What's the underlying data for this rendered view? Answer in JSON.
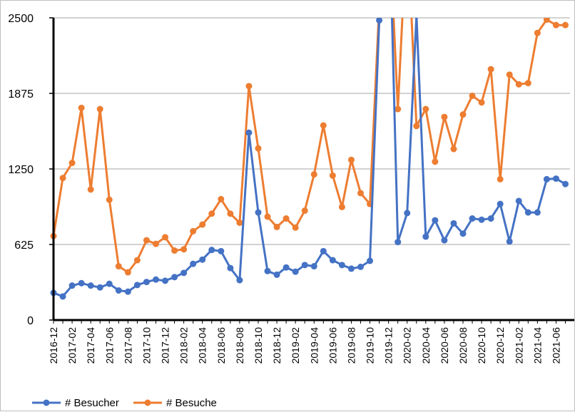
{
  "chart_data": {
    "type": "line",
    "title": "",
    "xlabel": "",
    "ylabel": "",
    "ylim": [
      0,
      2500
    ],
    "yticks": [
      0,
      625,
      1250,
      1875,
      2500
    ],
    "grid": true,
    "legend_position": "bottom-left",
    "x": [
      "2016-12",
      "2017-01",
      "2017-02",
      "2017-03",
      "2017-04",
      "2017-05",
      "2017-06",
      "2017-07",
      "2017-08",
      "2017-09",
      "2017-10",
      "2017-11",
      "2017-12",
      "2018-01",
      "2018-02",
      "2018-03",
      "2018-04",
      "2018-05",
      "2018-06",
      "2018-07",
      "2018-08",
      "2018-09",
      "2018-10",
      "2018-11",
      "2018-12",
      "2019-01",
      "2019-02",
      "2019-03",
      "2019-04",
      "2019-05",
      "2019-06",
      "2019-07",
      "2019-08",
      "2019-09",
      "2019-10",
      "2019-11",
      "2019-12",
      "2020-01",
      "2020-02",
      "2020-03",
      "2020-04",
      "2020-05",
      "2020-06",
      "2020-07",
      "2020-08",
      "2020-09",
      "2020-10",
      "2020-11",
      "2020-12",
      "2021-01",
      "2021-02",
      "2021-03",
      "2021-04",
      "2021-05",
      "2021-06",
      "2021-07"
    ],
    "x_tick_labels": [
      "2016-12",
      "2017-02",
      "2017-04",
      "2017-06",
      "2017-08",
      "2017-10",
      "2017-12",
      "2018-02",
      "2018-04",
      "2018-06",
      "2018-08",
      "2018-10",
      "2018-12",
      "2019-02",
      "2019-04",
      "2019-06",
      "2019-08",
      "2019-10",
      "2019-12",
      "2020-02",
      "2020-04",
      "2020-06",
      "2020-08",
      "2020-10",
      "2020-12",
      "2021-02",
      "2021-04",
      "2021-06"
    ],
    "series": [
      {
        "name": "# Besucher",
        "color": "#4472c4",
        "values": [
          225,
          195,
          285,
          305,
          285,
          270,
          300,
          245,
          235,
          290,
          315,
          335,
          325,
          355,
          390,
          465,
          500,
          580,
          570,
          430,
          330,
          1550,
          890,
          405,
          375,
          435,
          400,
          455,
          445,
          570,
          495,
          455,
          425,
          440,
          490,
          2480,
          3600,
          645,
          885,
          2520,
          690,
          825,
          660,
          800,
          715,
          840,
          830,
          840,
          960,
          650,
          985,
          890,
          890,
          1165,
          1170,
          1125
        ]
      },
      {
        "name": "# Besuche",
        "color": "#ed7d31",
        "values": [
          695,
          1175,
          1300,
          1755,
          1080,
          1745,
          995,
          445,
          395,
          495,
          660,
          630,
          685,
          575,
          585,
          735,
          790,
          880,
          1000,
          880,
          805,
          1935,
          1420,
          855,
          770,
          840,
          765,
          905,
          1205,
          1610,
          1195,
          935,
          1325,
          1050,
          960,
          2600,
          3400,
          1745,
          3300,
          1605,
          1745,
          1310,
          1680,
          1415,
          1700,
          1855,
          1800,
          2075,
          1165,
          2030,
          1950,
          1960,
          2375,
          2485,
          2440,
          2440
        ]
      }
    ]
  }
}
